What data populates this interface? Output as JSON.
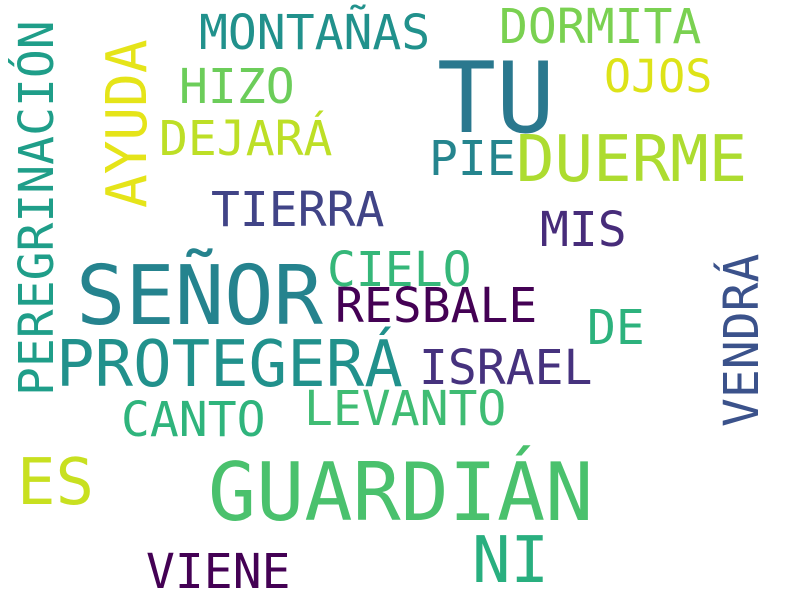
{
  "words": [
    {
      "text": "TU",
      "color": "#2a788e"
    },
    {
      "text": "SEÑOR",
      "color": "#25838e"
    },
    {
      "text": "GUARDIÁN",
      "color": "#4ac16d"
    },
    {
      "text": "PROTEGERÁ",
      "color": "#21918c"
    },
    {
      "text": "DUERME",
      "color": "#addc30"
    },
    {
      "text": "AYUDA",
      "color": "#e5e419"
    },
    {
      "text": "PEREGRINACIÓN",
      "color": "#1f9e89"
    },
    {
      "text": "MONTAÑAS",
      "color": "#21918c"
    },
    {
      "text": "DORMITA",
      "color": "#7ad151"
    },
    {
      "text": "OJOS",
      "color": "#dde318"
    },
    {
      "text": "HIZO",
      "color": "#6ccd5a"
    },
    {
      "text": "DEJARÁ",
      "color": "#bddf26"
    },
    {
      "text": "PIE",
      "color": "#25858e"
    },
    {
      "text": "TIERRA",
      "color": "#414487"
    },
    {
      "text": "MIS",
      "color": "#472c7a"
    },
    {
      "text": "CIELO",
      "color": "#35b779"
    },
    {
      "text": "RESBALE",
      "color": "#440154"
    },
    {
      "text": "DE",
      "color": "#2db27d"
    },
    {
      "text": "ISRAEL",
      "color": "#46327e"
    },
    {
      "text": "VENDRÁ",
      "color": "#3b528b"
    },
    {
      "text": "CANTO",
      "color": "#2fb47c"
    },
    {
      "text": "LEVANTO",
      "color": "#3fbc73"
    },
    {
      "text": "ES",
      "color": "#c8e020"
    },
    {
      "text": "NI",
      "color": "#29af7f"
    },
    {
      "text": "VIENE",
      "color": "#440154"
    }
  ]
}
